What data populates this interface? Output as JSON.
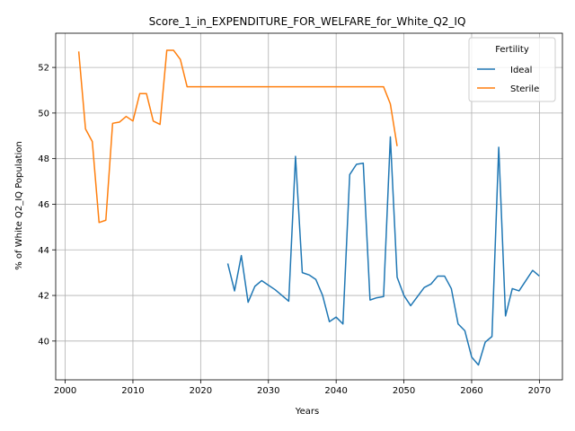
{
  "chart_data": {
    "type": "line",
    "title": "Score_1_in_EXPENDITURE_FOR_WELFARE_for_White_Q2_IQ",
    "xlabel": "Years",
    "ylabel": "% of White Q2_IQ Population",
    "xlim": [
      1998.6,
      2073.4
    ],
    "ylim": [
      38.3,
      53.5
    ],
    "xticks": [
      2000,
      2010,
      2020,
      2030,
      2040,
      2050,
      2060,
      2070
    ],
    "yticks": [
      40,
      42,
      44,
      46,
      48,
      50,
      52
    ],
    "grid": true,
    "legend": {
      "title": "Fertility",
      "position": "top-right"
    },
    "series": [
      {
        "name": "Ideal",
        "color": "#1f77b4",
        "points": [
          [
            2024,
            43.4
          ],
          [
            2025,
            42.2
          ],
          [
            2026,
            43.75
          ],
          [
            2027,
            41.7
          ],
          [
            2028,
            42.4
          ],
          [
            2029,
            42.65
          ],
          [
            2030,
            42.45
          ],
          [
            2031,
            42.25
          ],
          [
            2032,
            42.0
          ],
          [
            2033,
            41.75
          ],
          [
            2034,
            48.1
          ],
          [
            2035,
            43.0
          ],
          [
            2036,
            42.9
          ],
          [
            2037,
            42.7
          ],
          [
            2038,
            42.0
          ],
          [
            2039,
            40.85
          ],
          [
            2040,
            41.05
          ],
          [
            2041,
            40.75
          ],
          [
            2042,
            47.3
          ],
          [
            2043,
            47.75
          ],
          [
            2044,
            47.8
          ],
          [
            2045,
            41.8
          ],
          [
            2046,
            41.9
          ],
          [
            2047,
            41.95
          ],
          [
            2048,
            48.95
          ],
          [
            2049,
            42.8
          ],
          [
            2050,
            42.0
          ],
          [
            2051,
            41.55
          ],
          [
            2052,
            41.95
          ],
          [
            2053,
            42.35
          ],
          [
            2054,
            42.5
          ],
          [
            2055,
            42.85
          ],
          [
            2056,
            42.85
          ],
          [
            2057,
            42.3
          ],
          [
            2058,
            40.75
          ],
          [
            2059,
            40.45
          ],
          [
            2060,
            39.3
          ],
          [
            2061,
            38.95
          ],
          [
            2062,
            39.95
          ],
          [
            2063,
            40.2
          ],
          [
            2064,
            48.5
          ],
          [
            2065,
            41.1
          ],
          [
            2066,
            42.3
          ],
          [
            2067,
            42.2
          ],
          [
            2068,
            42.65
          ],
          [
            2069,
            43.1
          ],
          [
            2070,
            42.85
          ]
        ]
      },
      {
        "name": "Sterile",
        "color": "#ff7f0e",
        "points": [
          [
            2002,
            52.7
          ],
          [
            2003,
            49.3
          ],
          [
            2004,
            48.75
          ],
          [
            2005,
            45.2
          ],
          [
            2006,
            45.3
          ],
          [
            2007,
            49.55
          ],
          [
            2008,
            49.6
          ],
          [
            2009,
            49.85
          ],
          [
            2010,
            49.65
          ],
          [
            2011,
            50.85
          ],
          [
            2012,
            50.85
          ],
          [
            2013,
            49.65
          ],
          [
            2014,
            49.5
          ],
          [
            2015,
            52.75
          ],
          [
            2016,
            52.75
          ],
          [
            2017,
            52.35
          ],
          [
            2018,
            51.15
          ],
          [
            2019,
            51.15
          ],
          [
            2020,
            51.15
          ],
          [
            2025,
            51.15
          ],
          [
            2030,
            51.15
          ],
          [
            2035,
            51.15
          ],
          [
            2040,
            51.15
          ],
          [
            2045,
            51.15
          ],
          [
            2047,
            51.15
          ],
          [
            2048,
            50.4
          ],
          [
            2049,
            48.55
          ]
        ]
      }
    ]
  }
}
